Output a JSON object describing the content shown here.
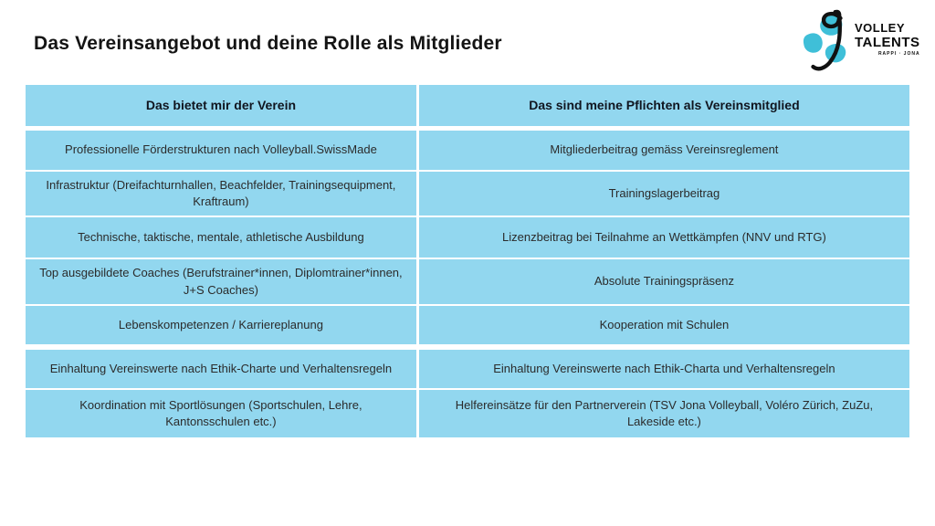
{
  "slide": {
    "title": "Das Vereinsangebot und deine Rolle als Mitglieder"
  },
  "logo": {
    "name": "volley-talents-logo",
    "line1": "VOLLEY",
    "line2": "TALENTS",
    "line3": "RAPPI · JONA"
  },
  "table": {
    "headers": [
      "Das bietet mir der Verein",
      "Das sind meine Pflichten als Vereinsmitglied"
    ],
    "rows": [
      [
        "Professionelle Förderstrukturen nach Volleyball.SwissMade",
        "Mitgliederbeitrag gemäss Vereinsreglement"
      ],
      [
        "Infrastruktur (Dreifachturnhallen, Beachfelder, Trainingsequipment, Kraftraum)",
        "Trainingslagerbeitrag"
      ],
      [
        "Technische, taktische, mentale, athletische Ausbildung",
        "Lizenzbeitrag bei Teilnahme an Wettkämpfen (NNV und RTG)"
      ],
      [
        "Top ausgebildete Coaches (Berufstrainer*innen, Diplomtrainer*innen, J+S Coaches)",
        "Absolute Trainingspräsenz"
      ],
      [
        "Lebenskompetenzen / Karriereplanung",
        "Kooperation mit Schulen"
      ],
      [
        "Einhaltung Vereinswerte nach Ethik-Charte und Verhaltensregeln",
        "Einhaltung Vereinswerte nach Ethik-Charta und Verhaltensregeln"
      ],
      [
        "Koordination mit Sportlösungen (Sportschulen, Lehre, Kantonsschulen etc.)",
        "Helfereinsätze für den Partnerverein (TSV Jona Volleyball, Voléro Zürich, ZuZu, Lakeside etc.)"
      ]
    ]
  },
  "colors": {
    "cell_bg": "#92d7ef",
    "header_text": "#10151f",
    "body_text": "#2b2b2b",
    "logo_teal": "#3fbfd8",
    "logo_black": "#111111"
  }
}
